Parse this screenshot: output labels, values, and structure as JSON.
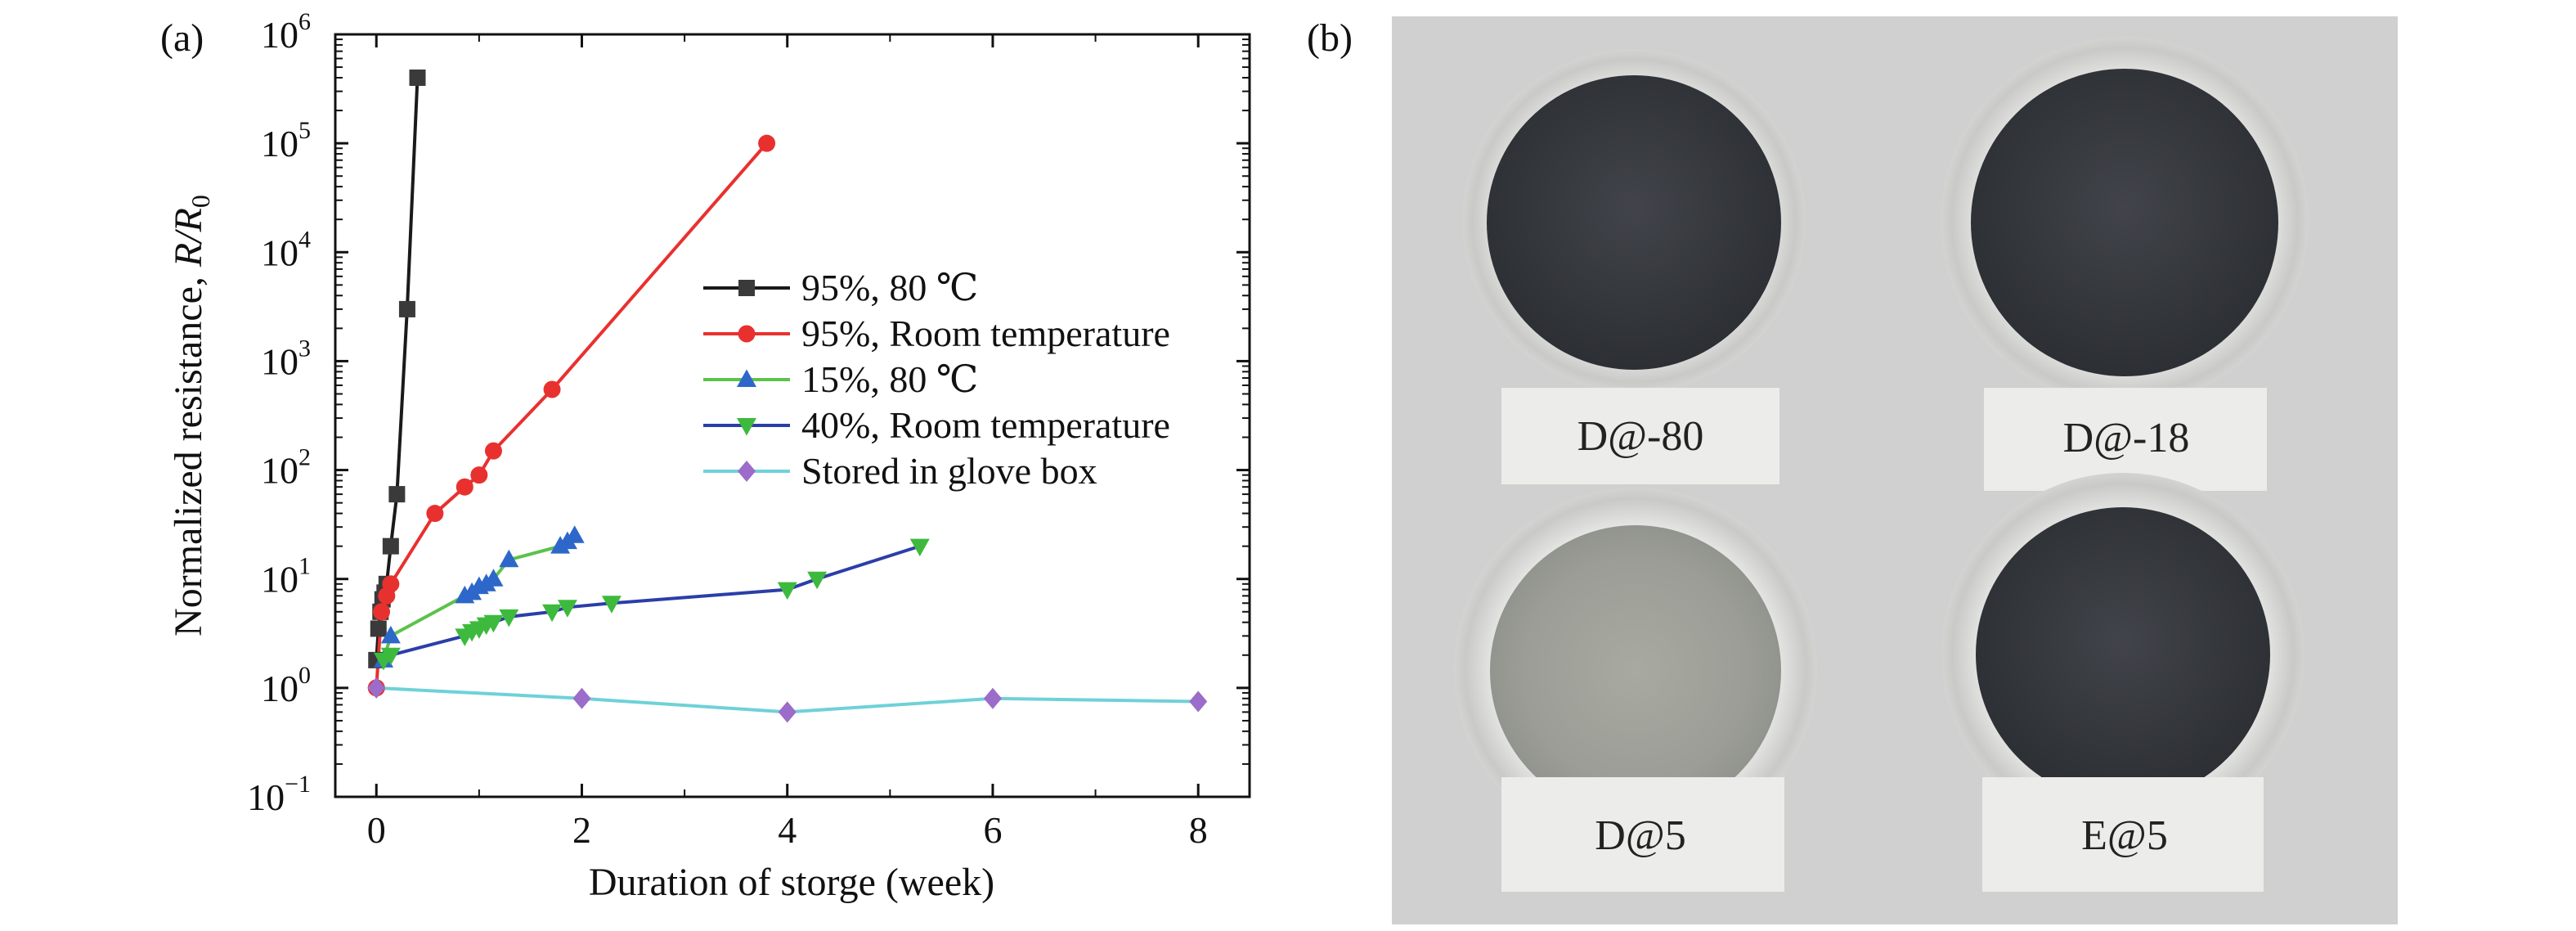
{
  "panels": {
    "a": "(a)",
    "b": "(b)"
  },
  "chart_data": {
    "type": "line",
    "xlabel": "Duration of storge (week)",
    "ylabel_main": "Normalized resistance, ",
    "ylabel_var": "R/R",
    "ylabel_sub": "0",
    "yscale": "log",
    "xlim": [
      -0.4,
      8.5
    ],
    "ylim_exp": [
      -1,
      6
    ],
    "xticks": [
      0,
      2,
      4,
      6,
      8
    ],
    "yticks": [
      {
        "base": "10",
        "exp": "6"
      },
      {
        "base": "10",
        "exp": "5"
      },
      {
        "base": "10",
        "exp": "4"
      },
      {
        "base": "10",
        "exp": "3"
      },
      {
        "base": "10",
        "exp": "2"
      },
      {
        "base": "10",
        "exp": "1"
      },
      {
        "base": "10",
        "exp": "0"
      },
      {
        "base": "10",
        "exp": "−1"
      }
    ],
    "grid": false,
    "legend_position": "center-right",
    "series": [
      {
        "name": "95%, 80 ℃",
        "line_color": "#1a1a1a",
        "marker_color": "#3a3a3a",
        "marker": "square",
        "x": [
          0,
          0.02,
          0.04,
          0.06,
          0.08,
          0.1,
          0.14,
          0.2,
          0.3,
          0.4
        ],
        "y": [
          1.8,
          3.5,
          5,
          6.5,
          7.5,
          9,
          20,
          60,
          3000,
          400000
        ]
      },
      {
        "name": "95%, Room temperature",
        "line_color": "#e8312f",
        "marker_color": "#e8312f",
        "marker": "circle",
        "x": [
          0,
          0.05,
          0.1,
          0.14,
          0.57,
          0.86,
          1.0,
          1.14,
          1.71,
          3.8
        ],
        "y": [
          1,
          5,
          7,
          9,
          40,
          70,
          90,
          150,
          550,
          100000
        ]
      },
      {
        "name": "15%, 80 ℃",
        "line_color": "#5cc24a",
        "marker_color": "#2d67c9",
        "marker": "triangle-up",
        "x": [
          0.07,
          0.14,
          0.86,
          0.93,
          1.0,
          1.07,
          1.14,
          1.29,
          1.79,
          1.86,
          1.93
        ],
        "y": [
          1.8,
          3,
          7,
          7.5,
          8.5,
          9,
          10,
          15,
          20,
          22,
          25
        ]
      },
      {
        "name": "40%, Room temperature",
        "line_color": "#2b3ea8",
        "marker_color": "#3dba3d",
        "marker": "triangle-down",
        "x": [
          0.07,
          0.14,
          0.86,
          0.93,
          1.0,
          1.07,
          1.14,
          1.29,
          1.71,
          1.86,
          2.29,
          4.0,
          4.29,
          5.29
        ],
        "y": [
          1.8,
          2,
          3,
          3.3,
          3.5,
          3.8,
          4,
          4.5,
          5,
          5.5,
          6,
          8,
          10,
          20
        ]
      },
      {
        "name": "Stored in glove box",
        "line_color": "#6fd1d8",
        "marker_color": "#9b6cc9",
        "marker": "diamond",
        "x": [
          0,
          2,
          4,
          6,
          8
        ],
        "y": [
          1,
          0.8,
          0.6,
          0.8,
          0.75
        ]
      }
    ]
  },
  "photo": {
    "colors": {
      "background": "#cfd0cf",
      "dark_disc": "#35383d",
      "light_disc": "#9c9e97",
      "label_bg": "#ececea"
    },
    "samples": [
      {
        "label": "D@-80",
        "shade": "dark"
      },
      {
        "label": "D@-18",
        "shade": "dark"
      },
      {
        "label": "D@5",
        "shade": "light"
      },
      {
        "label": "E@5",
        "shade": "dark"
      }
    ]
  }
}
